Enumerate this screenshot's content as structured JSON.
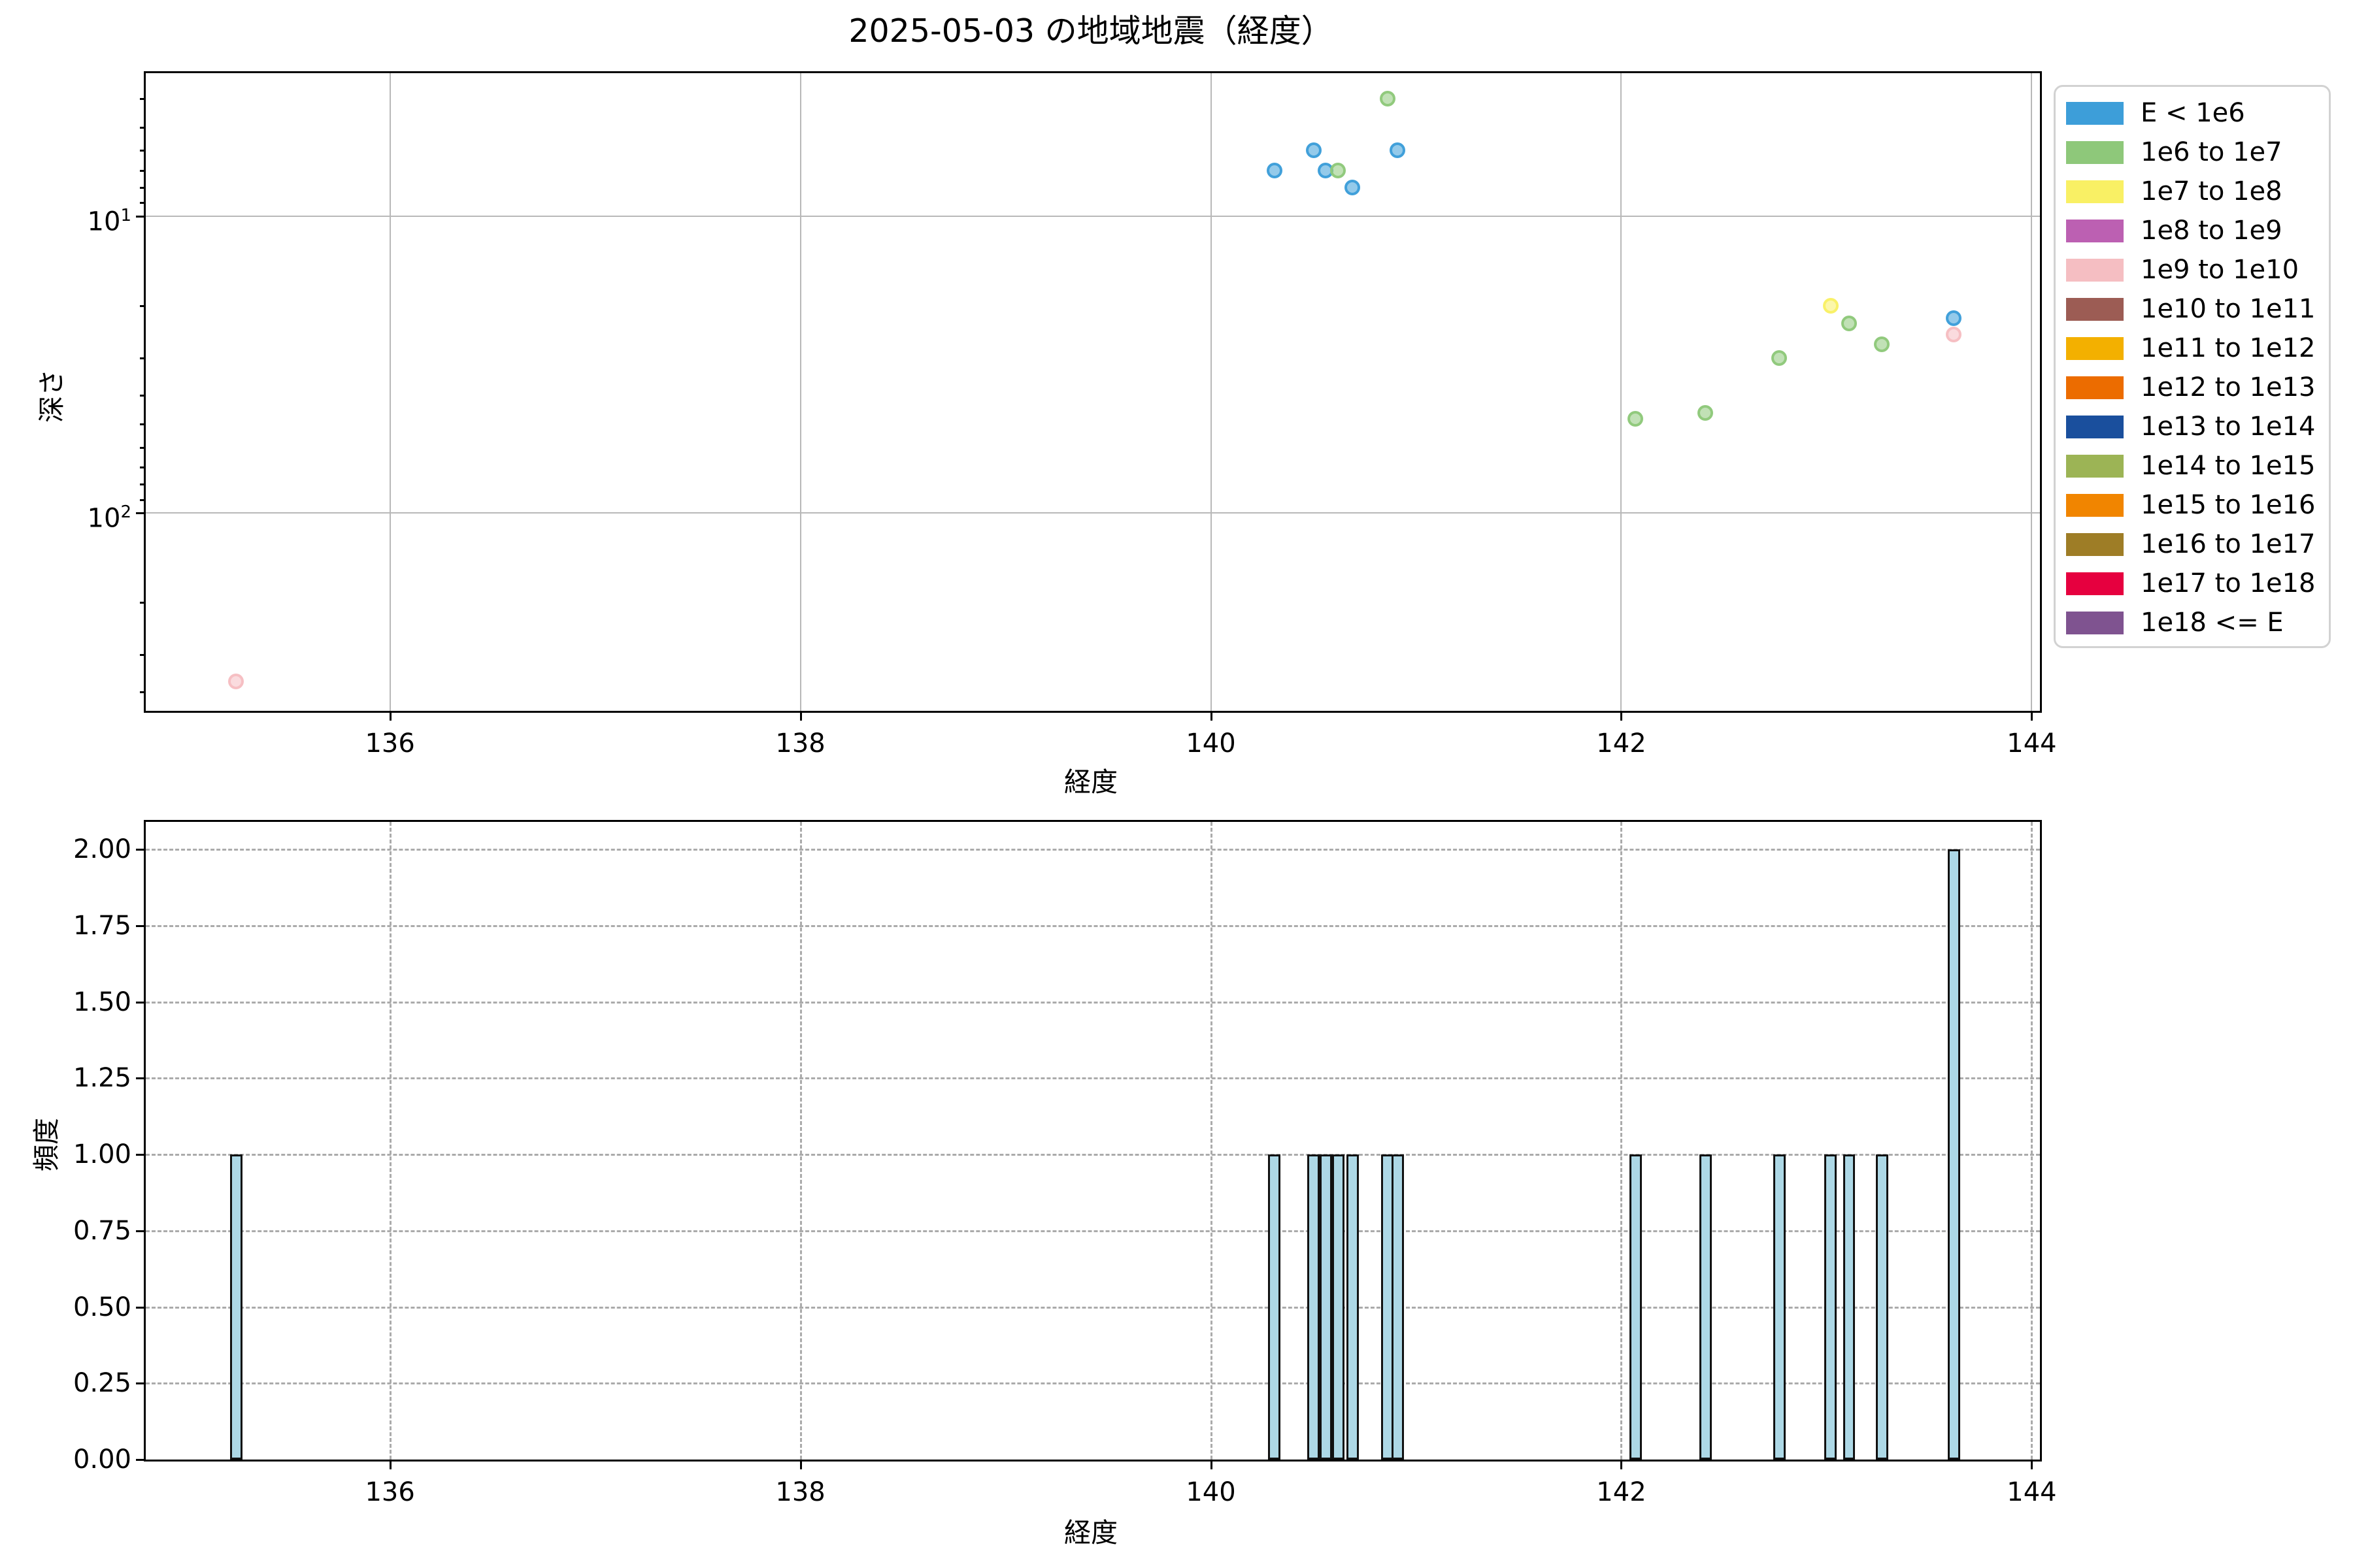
{
  "figure": {
    "title": "2025-05-03 の地域地震（経度）",
    "background": "#ffffff"
  },
  "axes_top": {
    "xlabel": "経度",
    "ylabel": "深さ"
  },
  "axes_bottom": {
    "xlabel": "経度",
    "ylabel": "頻度"
  },
  "legend": {
    "position": "upper right outside axes",
    "items": [
      {
        "label": "E < 1e6",
        "color": "#3D9ED9"
      },
      {
        "label": "1e6 to 1e7",
        "color": "#8EC87A"
      },
      {
        "label": "1e7 to 1e8",
        "color": "#F9F064"
      },
      {
        "label": "1e8 to 1e9",
        "color": "#BC60B2"
      },
      {
        "label": "1e9 to 1e10",
        "color": "#F5BEC2"
      },
      {
        "label": "1e10 to 1e11",
        "color": "#9C5C54"
      },
      {
        "label": "1e11 to 1e12",
        "color": "#F3B000"
      },
      {
        "label": "1e12 to 1e13",
        "color": "#EC6C00"
      },
      {
        "label": "1e13 to 1e14",
        "color": "#1A4F9D"
      },
      {
        "label": "1e14 to 1e15",
        "color": "#9CB455"
      },
      {
        "label": "1e15 to 1e16",
        "color": "#F18500"
      },
      {
        "label": "1e16 to 1e17",
        "color": "#9E7D26"
      },
      {
        "label": "1e17 to 1e18",
        "color": "#E6003F"
      },
      {
        "label": "1e18 <= E",
        "color": "#7F5390"
      }
    ]
  },
  "chart_data": [
    {
      "type": "scatter",
      "title": "2025-05-03 の地域地震（経度）",
      "xlabel": "経度",
      "ylabel": "深さ",
      "x_is": "longitude_deg",
      "y_is": "depth_km_log_scale_inverted",
      "xlim": [
        134.81,
        144.04
      ],
      "ylim": [
        3.29,
        464
      ],
      "xticks": [
        136,
        138,
        140,
        142,
        144
      ],
      "yticks_major": [
        {
          "v": 10,
          "base": "10",
          "exp": "1"
        },
        {
          "v": 100,
          "base": "10",
          "exp": "2"
        }
      ],
      "yticks_minor": [
        4,
        5,
        6,
        7,
        8,
        9,
        20,
        30,
        40,
        50,
        60,
        70,
        80,
        90,
        200,
        300,
        400
      ],
      "grid": "solid gray on major ticks",
      "points": [
        {
          "lon": 135.25,
          "depth": 370,
          "bin": "1e9 to 1e10"
        },
        {
          "lon": 140.31,
          "depth": 7,
          "bin": "E < 1e6"
        },
        {
          "lon": 140.5,
          "depth": 6,
          "bin": "E < 1e6"
        },
        {
          "lon": 140.56,
          "depth": 7,
          "bin": "E < 1e6"
        },
        {
          "lon": 140.62,
          "depth": 7,
          "bin": "1e6 to 1e7"
        },
        {
          "lon": 140.69,
          "depth": 8,
          "bin": "E < 1e6"
        },
        {
          "lon": 140.86,
          "depth": 4,
          "bin": "1e6 to 1e7"
        },
        {
          "lon": 140.91,
          "depth": 6,
          "bin": "E < 1e6"
        },
        {
          "lon": 142.07,
          "depth": 48,
          "bin": "1e6 to 1e7"
        },
        {
          "lon": 142.41,
          "depth": 46,
          "bin": "1e6 to 1e7"
        },
        {
          "lon": 142.77,
          "depth": 30,
          "bin": "1e6 to 1e7"
        },
        {
          "lon": 143.02,
          "depth": 20,
          "bin": "1e7 to 1e8"
        },
        {
          "lon": 143.11,
          "depth": 23,
          "bin": "1e6 to 1e7"
        },
        {
          "lon": 143.27,
          "depth": 27,
          "bin": "1e6 to 1e7"
        },
        {
          "lon": 143.62,
          "depth": 22,
          "bin": "E < 1e6"
        },
        {
          "lon": 143.62,
          "depth": 25,
          "bin": "1e9 to 1e10"
        }
      ]
    },
    {
      "type": "bar",
      "xlabel": "経度",
      "ylabel": "頻度",
      "xlim": [
        134.81,
        144.04
      ],
      "ylim": [
        0,
        2.09
      ],
      "xticks": [
        136,
        138,
        140,
        142,
        144
      ],
      "yticks": [
        {
          "v": 0.0,
          "label": "0.00"
        },
        {
          "v": 0.25,
          "label": "0.25"
        },
        {
          "v": 0.5,
          "label": "0.50"
        },
        {
          "v": 0.75,
          "label": "0.75"
        },
        {
          "v": 1.0,
          "label": "1.00"
        },
        {
          "v": 1.25,
          "label": "1.25"
        },
        {
          "v": 1.5,
          "label": "1.50"
        },
        {
          "v": 1.75,
          "label": "1.75"
        },
        {
          "v": 2.0,
          "label": "2.00"
        }
      ],
      "grid": "dashed gray on major ticks",
      "bar_fill": "#ADD8E6",
      "bar_edge": "#111111",
      "bar_width_deg": 0.06,
      "bars": [
        {
          "x": 135.25,
          "h": 1
        },
        {
          "x": 140.31,
          "h": 1
        },
        {
          "x": 140.5,
          "h": 1
        },
        {
          "x": 140.56,
          "h": 1
        },
        {
          "x": 140.62,
          "h": 1
        },
        {
          "x": 140.69,
          "h": 1
        },
        {
          "x": 140.86,
          "h": 1
        },
        {
          "x": 140.91,
          "h": 1
        },
        {
          "x": 142.07,
          "h": 1
        },
        {
          "x": 142.41,
          "h": 1
        },
        {
          "x": 142.77,
          "h": 1
        },
        {
          "x": 143.02,
          "h": 1
        },
        {
          "x": 143.11,
          "h": 1
        },
        {
          "x": 143.27,
          "h": 1
        },
        {
          "x": 143.62,
          "h": 2
        }
      ]
    }
  ]
}
